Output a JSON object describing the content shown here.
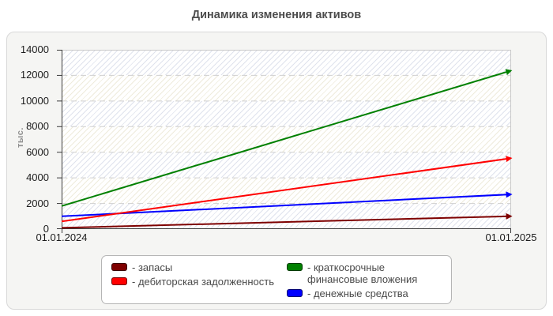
{
  "title": "Динамика изменения активов",
  "y_axis": {
    "label": "тыс."
  },
  "chart_data": {
    "type": "line",
    "title": "Динамика изменения активов",
    "ylabel": "тыс.",
    "x": [
      "01.01.2024",
      "01.01.2025"
    ],
    "ylim": [
      0,
      14000
    ],
    "ytick_step": 2000,
    "yticks": [
      0,
      2000,
      4000,
      6000,
      8000,
      10000,
      12000,
      14000
    ],
    "grid": "horizontal-dashed",
    "plot_background": "diagonal hatch, alternating pale blue / pale cream horizontal bands",
    "legend_position": "bottom",
    "line_end_marker": "arrowhead",
    "series": [
      {
        "name": "запасы",
        "color": "#7e0000",
        "values": [
          100,
          1000
        ]
      },
      {
        "name": "дебиторская задолженность",
        "color": "#ff0000",
        "values": [
          600,
          5500
        ]
      },
      {
        "name": "краткосрочные финансовые вложения",
        "color": "#008000",
        "values": [
          1800,
          12300
        ]
      },
      {
        "name": "денежные средства",
        "color": "#0000ff",
        "values": [
          1000,
          2700
        ]
      }
    ]
  },
  "legend": {
    "col1": [
      {
        "label": "- запасы",
        "color": "#7e0000"
      },
      {
        "label": "- дебиторская задолженность",
        "color": "#ff0000"
      }
    ],
    "col2": [
      {
        "label": "- краткосрочные финансовые вложения",
        "color": "#008000"
      },
      {
        "label": "- денежные средства",
        "color": "#0000ff"
      }
    ]
  }
}
